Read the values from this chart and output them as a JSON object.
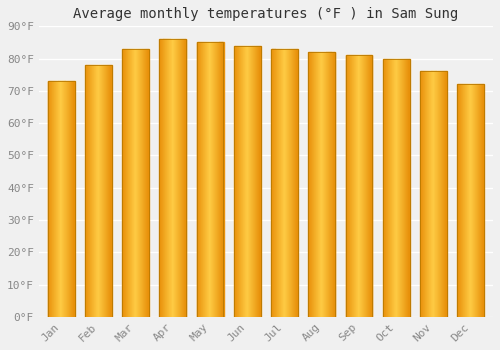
{
  "title": "Average monthly temperatures (°F ) in Sam Sung",
  "categories": [
    "Jan",
    "Feb",
    "Mar",
    "Apr",
    "May",
    "Jun",
    "Jul",
    "Aug",
    "Sep",
    "Oct",
    "Nov",
    "Dec"
  ],
  "values": [
    73,
    78,
    83,
    86,
    85,
    84,
    83,
    82,
    81,
    80,
    76,
    72
  ],
  "bar_color_center": "#FFCC44",
  "bar_color_edge": "#E8900A",
  "bar_border_color": "#B87800",
  "ylim": [
    0,
    90
  ],
  "ytick_step": 10,
  "background_color": "#f0f0f0",
  "plot_bg_color": "#f0f0f0",
  "grid_color": "#ffffff",
  "title_fontsize": 10,
  "tick_fontsize": 8,
  "title_color": "#333333",
  "tick_color": "#888888"
}
